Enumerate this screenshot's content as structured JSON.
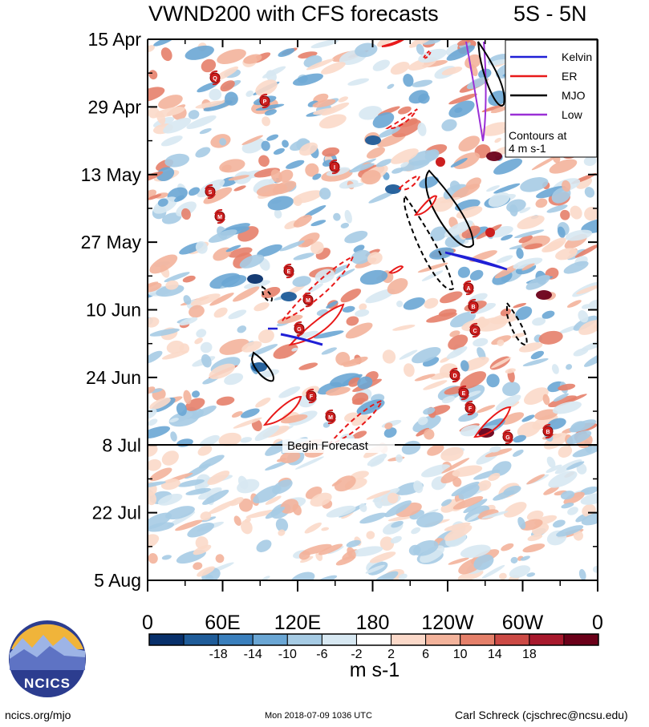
{
  "title": "VWND200 with CFS forecasts",
  "region": "5S - 5N",
  "chart_data": {
    "type": "heatmap",
    "variable": "VWND200",
    "x_ticks": [
      "0",
      "60E",
      "120E",
      "180",
      "120W",
      "60W",
      "0"
    ],
    "y_ticks": [
      "15 Apr",
      "29 Apr",
      "13 May",
      "27 May",
      "10 Jun",
      "24 Jun",
      "8 Jul",
      "22 Jul",
      "5 Aug"
    ],
    "colorbar": {
      "unit": "m s-1",
      "tick_labels": [
        "-18",
        "-14",
        "-10",
        "-6",
        "-2",
        "2",
        "6",
        "10",
        "14",
        "18"
      ],
      "colors": [
        "#08306b",
        "#1f5c99",
        "#3a7fbd",
        "#6aa6d4",
        "#a6cbe4",
        "#d7e8f2",
        "#ffffff",
        "#fbd9c9",
        "#f3b39b",
        "#e5806a",
        "#cc4a45",
        "#a8192d",
        "#6b0019"
      ]
    },
    "legend": {
      "entries": [
        {
          "label": "Kelvin",
          "color": "#1f1fd6"
        },
        {
          "label": "ER",
          "color": "#e81919"
        },
        {
          "label": "MJO",
          "color": "#000000"
        },
        {
          "label": "Low",
          "color": "#9a2fd6"
        }
      ],
      "note_line1": "Contours at",
      "note_line2": "4 m s-1"
    },
    "forecast_label": "Begin Forecast",
    "forecast_start": "8 Jul",
    "storm_markers": [
      "Q",
      "P",
      "S",
      "M",
      "I",
      "E",
      "M",
      "G",
      "F",
      "M",
      "A",
      "B",
      "C",
      "D",
      "E",
      "F",
      "G",
      "B"
    ]
  },
  "footer": {
    "logo_text": "NCICS",
    "url": "ncics.org/mjo",
    "timestamp": "Mon 2018-07-09 1036 UTC",
    "author": "Carl Schreck (cjschrec@ncsu.edu)"
  }
}
